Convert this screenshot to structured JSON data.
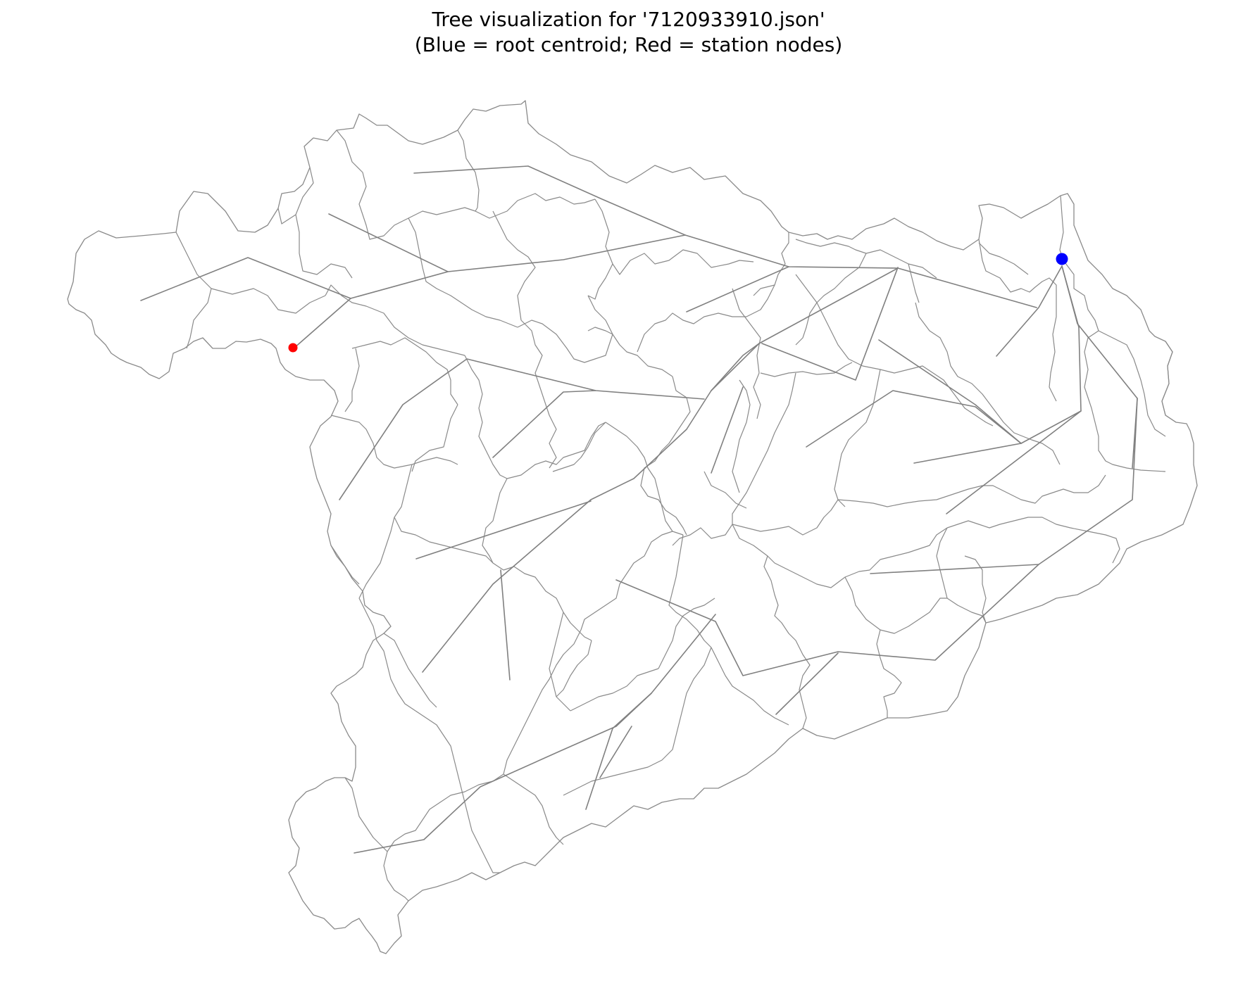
{
  "title": {
    "line1": "Tree visualization for '7120933910.json'",
    "line2": "(Blue = root centroid; Red = station nodes)"
  },
  "colors": {
    "root": "#0000ff",
    "station": "#ff0000",
    "edge": "#808080",
    "boundary": "#8a8a8a",
    "background": "#ffffff"
  },
  "legend": {
    "root": "root centroid",
    "station": "station nodes"
  }
}
